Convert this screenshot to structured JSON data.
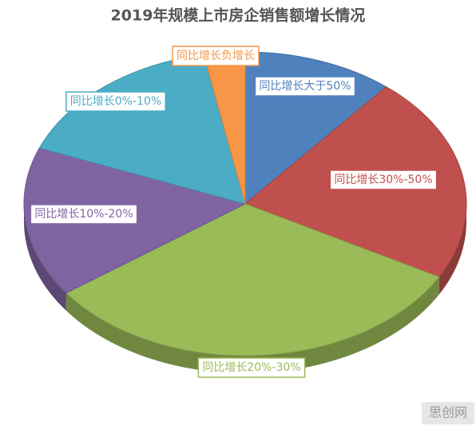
{
  "chart_data": {
    "type": "pie",
    "title": "2019年规模上市房企销售额增长情况",
    "categories": [
      "同比增长大于50%",
      "同比增长30%-50%",
      "同比增长20%-30%",
      "同比增长10%-20%",
      "同比增长0%-10%",
      "同比增长负增长"
    ],
    "values": [
      11,
      22,
      32,
      16,
      16,
      3
    ],
    "colors": [
      "#4f81bd",
      "#c0504d",
      "#9bbb59",
      "#8064a2",
      "#4bacc6",
      "#f79646"
    ],
    "watermark": "思创网"
  }
}
